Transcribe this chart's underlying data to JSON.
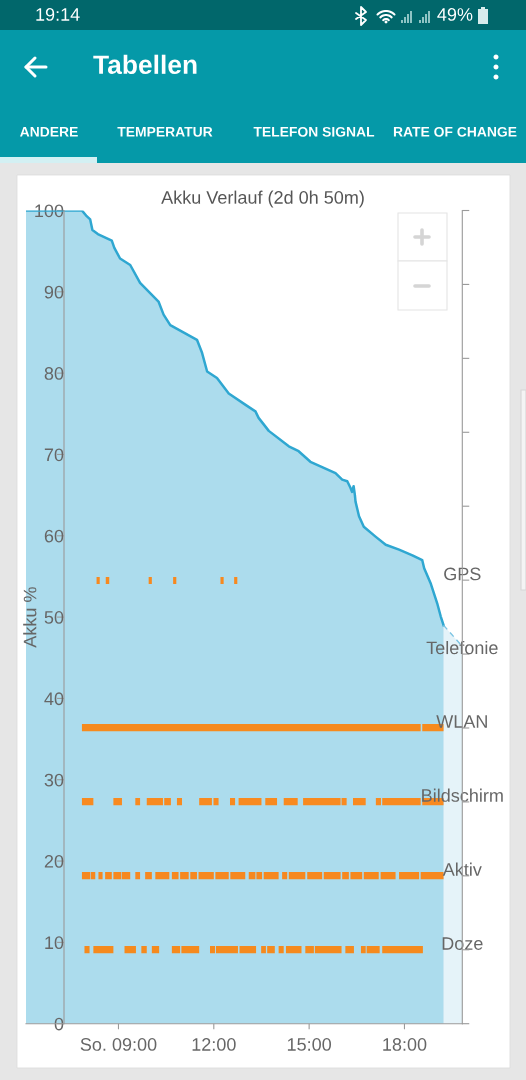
{
  "chart_data": {
    "type": "area",
    "title": "Akku Verlauf (2d 0h 50m)",
    "ylabel": "Akku %",
    "annotations": [
      "19:14",
      "49%",
      "Tabellen",
      "ANDERE",
      "TEMPERATUR",
      "TELEFON SIGNAL",
      "RATE OF CHANGE"
    ],
    "xlim": [
      6.09,
      19.82
    ],
    "xticks": [
      {
        "value": 9,
        "label": "So. 09:00"
      },
      {
        "value": 12,
        "label": "12:00"
      },
      {
        "value": 15,
        "label": "15:00"
      },
      {
        "value": 18,
        "label": "18:00"
      }
    ],
    "ylim": [
      0,
      100
    ],
    "yticks": [
      0,
      10,
      20,
      30,
      40,
      50,
      60,
      70,
      80,
      90,
      100
    ],
    "y2_categories": [
      null,
      null,
      null,
      null,
      null,
      "GPS",
      "Telefonie",
      null,
      null,
      null,
      null,
      null
    ],
    "series": [
      {
        "color": "#2fa7d1",
        "x": [
          6.09,
          7.85,
          8.0,
          8.11,
          8.18,
          8.35,
          8.79,
          8.87,
          9.05,
          9.37,
          9.68,
          10.26,
          10.42,
          10.63,
          11.1,
          11.47,
          11.63,
          11.79,
          12.1,
          12.47,
          13.0,
          13.31,
          13.41,
          13.73,
          14.36,
          14.67,
          15.04,
          15.83,
          16.04,
          16.2,
          16.3,
          16.35,
          16.4,
          16.44,
          16.46,
          16.57,
          16.72,
          17.09,
          17.41,
          17.83,
          18.25,
          18.56,
          18.62,
          18.82,
          19.03,
          19.14,
          19.23
        ],
        "values": [
          100,
          100,
          99.3,
          98.9,
          97.6,
          97.1,
          96.3,
          95.4,
          94.1,
          93.3,
          91.1,
          88.8,
          87.2,
          85.9,
          84.9,
          84.1,
          82.5,
          80.2,
          79.4,
          77.5,
          76.1,
          75.3,
          74.5,
          72.9,
          71.0,
          70.4,
          69.1,
          67.7,
          66.9,
          66.7,
          65.9,
          65.4,
          66.1,
          65.0,
          64.2,
          62.4,
          61.1,
          59.9,
          58.9,
          58.3,
          57.6,
          57.0,
          56.0,
          54.2,
          51.7,
          50.1,
          49
        ]
      },
      {
        "color": "#7cc4e3",
        "line_style": "dashed",
        "x": [
          19.23,
          19.82
        ],
        "values": [
          49,
          46.4
        ]
      },
      {
        "type": "line",
        "color": "#f7891f",
        "x": [
          8.31,
          8.41,
          null,
          8.6,
          8.71,
          null,
          9.95,
          10.05,
          null,
          10.72,
          10.82,
          null,
          12.21,
          12.31,
          null,
          12.64,
          12.74
        ],
        "values": [
          54.5,
          54.5,
          null,
          54.5,
          54.5,
          null,
          54.5,
          54.5,
          null,
          54.5,
          54.5,
          null,
          54.5,
          54.5,
          null,
          54.5,
          54.5
        ]
      },
      {
        "type": "line",
        "name": "WLAN",
        "color": "#f68a1e",
        "x": [
          7.85,
          18.51,
          null,
          18.56,
          19.23
        ],
        "values": [
          36.4,
          36.4,
          null,
          36.4,
          36.4
        ]
      },
      {
        "type": "line",
        "name": "Bildschirm",
        "color": "#f88a20",
        "x": [
          7.85,
          8.21,
          null,
          8.84,
          9.11,
          null,
          9.53,
          9.68,
          null,
          9.89,
          10.4,
          null,
          10.44,
          10.65,
          null,
          10.84,
          11.0,
          null,
          11.54,
          11.94,
          null,
          11.99,
          12.15,
          null,
          12.51,
          12.67,
          null,
          12.78,
          13.5,
          null,
          13.62,
          13.99,
          null,
          14.2,
          14.64,
          null,
          14.81,
          15.99,
          null,
          16.02,
          16.18,
          null,
          16.38,
          16.78,
          null,
          17.1,
          17.26,
          null,
          17.3,
          18.51,
          null,
          18.56,
          19.23
        ],
        "values": [
          27.3,
          27.3,
          null,
          27.3,
          27.3,
          null,
          27.3,
          27.3,
          null,
          27.3,
          27.3,
          null,
          27.3,
          27.3,
          null,
          27.3,
          27.3,
          null,
          27.3,
          27.3,
          null,
          27.3,
          27.3,
          null,
          27.3,
          27.3,
          null,
          27.3,
          27.3,
          null,
          27.3,
          27.3,
          null,
          27.3,
          27.3,
          null,
          27.3,
          27.3,
          null,
          27.3,
          27.3,
          null,
          27.3,
          27.3,
          null,
          27.3,
          27.3,
          null,
          27.3,
          27.3,
          null,
          27.3,
          27.3
        ]
      },
      {
        "type": "line",
        "name": "Aktiv",
        "color": "#f6881f",
        "x": [
          7.85,
          8.11,
          null,
          8.13,
          8.27,
          null,
          8.37,
          8.5,
          null,
          8.58,
          8.79,
          null,
          8.84,
          9.09,
          null,
          9.11,
          9.37,
          null,
          9.53,
          9.68,
          null,
          9.84,
          10.05,
          null,
          10.16,
          10.6,
          null,
          10.68,
          10.89,
          null,
          10.94,
          11.21,
          null,
          11.26,
          11.47,
          null,
          11.52,
          12.0,
          null,
          12.05,
          12.47,
          null,
          12.52,
          12.99,
          null,
          13.1,
          13.31,
          null,
          13.34,
          13.52,
          null,
          13.57,
          14.04,
          null,
          14.15,
          14.31,
          null,
          14.36,
          14.88,
          null,
          14.94,
          15.41,
          null,
          15.46,
          15.99,
          null,
          16.04,
          16.25,
          null,
          16.3,
          16.67,
          null,
          16.72,
          17.19,
          null,
          17.25,
          17.72,
          null,
          17.83,
          18.46,
          null,
          18.51,
          19.23
        ],
        "values": [
          18.2,
          18.2,
          null,
          18.2,
          18.2,
          null,
          18.2,
          18.2,
          null,
          18.2,
          18.2,
          null,
          18.2,
          18.2,
          null,
          18.2,
          18.2,
          null,
          18.2,
          18.2,
          null,
          18.2,
          18.2,
          null,
          18.2,
          18.2,
          null,
          18.2,
          18.2,
          null,
          18.2,
          18.2,
          null,
          18.2,
          18.2,
          null,
          18.2,
          18.2,
          null,
          18.2,
          18.2,
          null,
          18.2,
          18.2,
          null,
          18.2,
          18.2,
          null,
          18.2,
          18.2,
          null,
          18.2,
          18.2,
          null,
          18.2,
          18.2,
          null,
          18.2,
          18.2,
          null,
          18.2,
          18.2,
          null,
          18.2,
          18.2,
          null,
          18.2,
          18.2,
          null,
          18.2,
          18.2,
          null,
          18.2,
          18.2,
          null,
          18.2,
          18.2,
          null,
          18.2,
          18.2,
          null,
          18.2,
          18.2
        ]
      },
      {
        "type": "line",
        "name": "Doze",
        "color": "#f58a1e",
        "x": [
          7.93,
          8.09,
          null,
          8.21,
          8.84,
          null,
          9.19,
          9.55,
          null,
          9.72,
          9.89,
          null,
          10.05,
          10.28,
          null,
          10.68,
          10.94,
          null,
          10.98,
          11.54,
          null,
          11.88,
          12.04,
          null,
          12.07,
          12.76,
          null,
          12.81,
          13.33,
          null,
          13.49,
          13.64,
          null,
          13.68,
          13.92,
          null,
          14.04,
          14.2,
          null,
          14.27,
          14.76,
          null,
          14.88,
          15.15,
          null,
          15.18,
          16.02,
          null,
          16.14,
          16.41,
          null,
          16.63,
          16.78,
          null,
          16.81,
          17.22,
          null,
          17.3,
          18.58
        ],
        "values": [
          9.1,
          9.1,
          null,
          9.1,
          9.1,
          null,
          9.1,
          9.1,
          null,
          9.1,
          9.1,
          null,
          9.1,
          9.1,
          null,
          9.1,
          9.1,
          null,
          9.1,
          9.1,
          null,
          9.1,
          9.1,
          null,
          9.1,
          9.1,
          null,
          9.1,
          9.1,
          null,
          9.1,
          9.1,
          null,
          9.1,
          9.1,
          null,
          9.1,
          9.1,
          null,
          9.1,
          9.1,
          null,
          9.1,
          9.1,
          null,
          9.1,
          9.1,
          null,
          9.1,
          9.1,
          null,
          9.1,
          9.1,
          null,
          9.1,
          9.1,
          null,
          9.1,
          9.1
        ]
      }
    ]
  }
}
